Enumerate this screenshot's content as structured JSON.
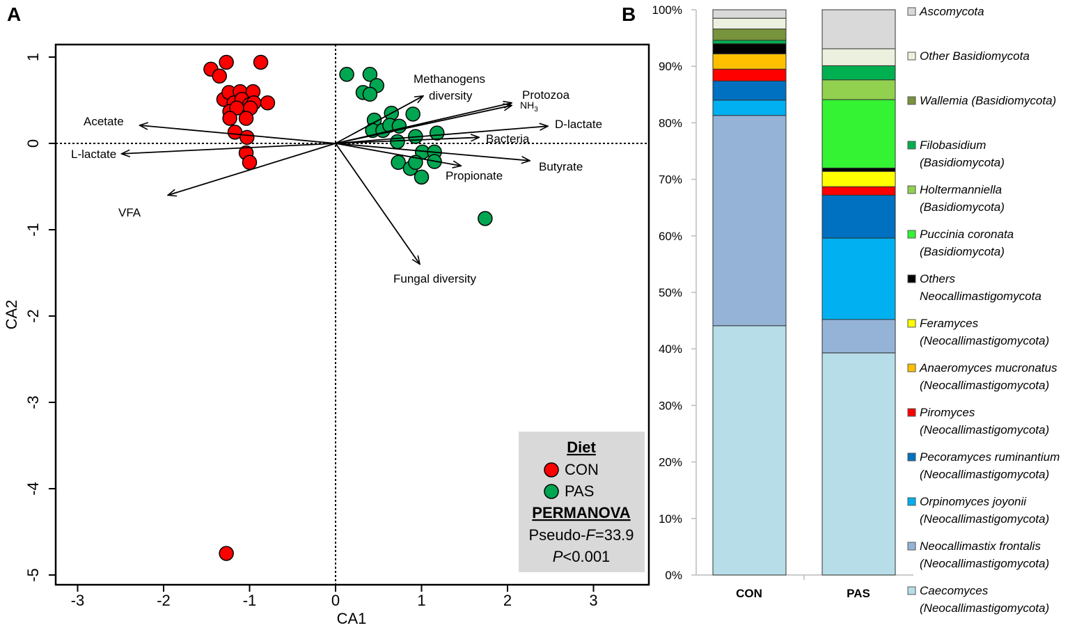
{
  "chart_data": [
    {
      "type": "scatter",
      "panel_label": "A",
      "xlabel": "CA1",
      "ylabel": "CA2",
      "xlim": [
        -3.3,
        3.6
      ],
      "ylim": [
        -5.05,
        1.15
      ],
      "xticks": [
        -3,
        -2,
        -1,
        0,
        1,
        2,
        3
      ],
      "yticks": [
        1,
        0,
        -1,
        -2,
        -3,
        -4,
        -5
      ],
      "grid": false,
      "reference_lines": "dotted lines at x=0 and y=0",
      "series": [
        {
          "name": "CON",
          "color": "#ff0000",
          "points": [
            [
              -1.45,
              0.86
            ],
            [
              -1.27,
              0.94
            ],
            [
              -0.87,
              0.94
            ],
            [
              -1.35,
              0.78
            ],
            [
              -1.3,
              0.51
            ],
            [
              -1.24,
              0.59
            ],
            [
              -1.11,
              0.6
            ],
            [
              -0.96,
              0.6
            ],
            [
              -1.18,
              0.47
            ],
            [
              -1.09,
              0.51
            ],
            [
              -1.0,
              0.45
            ],
            [
              -0.95,
              0.47
            ],
            [
              -0.79,
              0.47
            ],
            [
              -1.23,
              0.37
            ],
            [
              -1.15,
              0.41
            ],
            [
              -0.99,
              0.41
            ],
            [
              -1.23,
              0.29
            ],
            [
              -1.04,
              0.29
            ],
            [
              -1.17,
              0.13
            ],
            [
              -1.03,
              0.07
            ],
            [
              -1.04,
              -0.11
            ],
            [
              -1.0,
              -0.22
            ],
            [
              -1.27,
              -4.75
            ]
          ]
        },
        {
          "name": "PAS",
          "color": "#00a651",
          "points": [
            [
              0.13,
              0.8
            ],
            [
              0.4,
              0.8
            ],
            [
              0.48,
              0.67
            ],
            [
              0.32,
              0.59
            ],
            [
              0.4,
              0.57
            ],
            [
              0.45,
              0.27
            ],
            [
              0.65,
              0.35
            ],
            [
              0.9,
              0.34
            ],
            [
              0.43,
              0.15
            ],
            [
              0.55,
              0.15
            ],
            [
              0.63,
              0.21
            ],
            [
              0.74,
              0.2
            ],
            [
              0.93,
              0.08
            ],
            [
              1.18,
              0.12
            ],
            [
              0.72,
              0.02
            ],
            [
              1.01,
              -0.1
            ],
            [
              1.15,
              -0.1
            ],
            [
              1.15,
              -0.21
            ],
            [
              0.73,
              -0.22
            ],
            [
              0.87,
              -0.29
            ],
            [
              0.93,
              -0.22
            ],
            [
              1.0,
              -0.39
            ],
            [
              1.74,
              -0.87
            ]
          ]
        }
      ],
      "vectors": [
        {
          "label": "Acetate",
          "x": -2.28,
          "y": 0.21
        },
        {
          "label": "L-lactate",
          "x": -2.49,
          "y": -0.12
        },
        {
          "label": "VFA",
          "x": -1.95,
          "y": -0.6
        },
        {
          "label": "Methanogens diversity",
          "x": 1.02,
          "y": 0.55
        },
        {
          "label": "Protozoa",
          "x": 2.05,
          "y": 0.47
        },
        {
          "label": "NH3",
          "x": 2.05,
          "y": 0.44
        },
        {
          "label": "D-lactate",
          "x": 2.47,
          "y": 0.2
        },
        {
          "label": "Bacteria",
          "x": 1.67,
          "y": 0.07
        },
        {
          "label": "Butyrate",
          "x": 2.26,
          "y": -0.2
        },
        {
          "label": "Propionate",
          "x": 1.46,
          "y": -0.26
        },
        {
          "label": "Fungal diversity",
          "x": 0.98,
          "y": -1.4
        }
      ],
      "legend": {
        "placement": "bottom-right",
        "title": "Diet",
        "entries": [
          "CON",
          "PAS"
        ],
        "stats_title": "PERMANOVA",
        "stat_prefix": "Pseudo-",
        "stat_italic": "F",
        "stat_value": "=33.9",
        "p_italic": "P",
        "p_value": "<0.001"
      }
    },
    {
      "type": "bar",
      "stacked": true,
      "panel_label": "B",
      "categories": [
        "CON",
        "PAS"
      ],
      "ylim": [
        0,
        100
      ],
      "yticks": [
        "0%",
        "10%",
        "20%",
        "30%",
        "40%",
        "50%",
        "60%",
        "70%",
        "80%",
        "90%",
        "100%"
      ],
      "legend_placement": "right",
      "series": [
        {
          "name": "Caecomyces",
          "group": "(Neocallimastigomycota)",
          "color": "#b7dde8",
          "values": [
            44.1,
            39.3
          ]
        },
        {
          "name": "Neocallimastix frontalis",
          "group": "(Neocallimastigomycota)",
          "color": "#95b3d7",
          "values": [
            37.2,
            5.9
          ]
        },
        {
          "name": "Orpinomyces joyonii",
          "group": "(Neocallimastigomycota)",
          "color": "#00b0f0",
          "values": [
            2.7,
            14.4
          ]
        },
        {
          "name": "Pecoramyces ruminantium",
          "group": "(Neocallimastigomycota)",
          "color": "#0070c0",
          "values": [
            3.4,
            7.6
          ]
        },
        {
          "name": "Piromyces",
          "group": "(Neocallimastigomycota)",
          "color": "#ff0000",
          "values": [
            2.1,
            1.5
          ]
        },
        {
          "name": "Anaeromyces mucronatus",
          "group": "(Neocallimastigomycota)",
          "color": "#ffc000",
          "values": [
            2.7,
            0
          ]
        },
        {
          "name": "Feramyces",
          "group": "(Neocallimastigomycota)",
          "color": "#ffff00",
          "values": [
            0,
            2.7
          ]
        },
        {
          "name": "Others",
          "group": "Neocallimastigomycota",
          "color": "#000000",
          "values": [
            1.8,
            0.6
          ]
        },
        {
          "name": "Puccinia coronata",
          "group": "(Basidiomycota)",
          "color": "#33f333",
          "values": [
            0,
            12.1
          ]
        },
        {
          "name": "Holtermanniella",
          "group": "(Basidiomycota)",
          "color": "#92d050",
          "values": [
            0,
            3.5
          ]
        },
        {
          "name": "Filobasidium",
          "group": "(Basidiomycota)",
          "color": "#00b050",
          "values": [
            0.6,
            2.5
          ]
        },
        {
          "name": "Wallemia (Basidiomycota)",
          "group": "",
          "color": "#77933c",
          "values": [
            2.0,
            0
          ]
        },
        {
          "name": "Other Basidiomycota",
          "group": "",
          "color": "#ebf1de",
          "values": [
            1.9,
            3.0
          ]
        },
        {
          "name": "Ascomycota",
          "group": "",
          "color": "#d9d9d9",
          "values": [
            1.5,
            6.9
          ]
        }
      ]
    }
  ]
}
